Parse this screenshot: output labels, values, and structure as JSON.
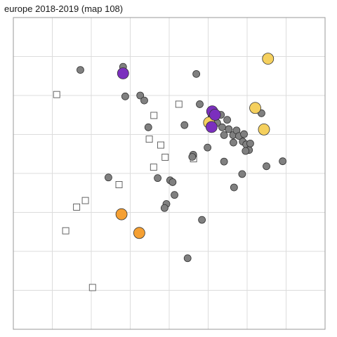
{
  "chart_data": {
    "type": "scatter",
    "title": "europe 2018-2019  (map 108)",
    "xlabel": "",
    "ylabel": "",
    "xlim": [
      0,
      100
    ],
    "ylim": [
      0,
      100
    ],
    "grid": true,
    "legend": "none",
    "colors": {
      "gray": "#808080",
      "purple": "#7b2fbe",
      "yellow": "#f5d05e",
      "orange": "#f5a033",
      "outline": "#333333",
      "hollow_stroke": "#555555",
      "grid": "#dcdcdc",
      "border": "#999999"
    },
    "series": [
      {
        "marker": "circle-gray",
        "points": [
          [
            21.5,
            83.2
          ],
          [
            35.2,
            84.2
          ],
          [
            58.7,
            81.9
          ],
          [
            35.9,
            74.7
          ],
          [
            40.7,
            75.0
          ],
          [
            42.0,
            73.4
          ],
          [
            59.8,
            72.2
          ],
          [
            54.9,
            65.5
          ],
          [
            43.3,
            64.8
          ],
          [
            63.6,
            68.3
          ],
          [
            66.6,
            68.8
          ],
          [
            65.4,
            66.2
          ],
          [
            68.6,
            67.2
          ],
          [
            69.1,
            64.2
          ],
          [
            67.0,
            64.8
          ],
          [
            67.6,
            62.3
          ],
          [
            70.5,
            62.3
          ],
          [
            71.6,
            63.8
          ],
          [
            70.6,
            59.9
          ],
          [
            72.4,
            62.0
          ],
          [
            74.0,
            62.6
          ],
          [
            73.6,
            60.2
          ],
          [
            74.7,
            59.3
          ],
          [
            75.6,
            57.5
          ],
          [
            76.0,
            59.6
          ],
          [
            74.5,
            57.2
          ],
          [
            79.6,
            69.3
          ],
          [
            62.3,
            58.3
          ],
          [
            57.7,
            56.0
          ],
          [
            57.4,
            55.3
          ],
          [
            67.6,
            53.8
          ],
          [
            73.4,
            49.8
          ],
          [
            81.2,
            52.3
          ],
          [
            86.4,
            53.9
          ],
          [
            30.5,
            48.7
          ],
          [
            46.3,
            48.5
          ],
          [
            50.3,
            47.8
          ],
          [
            51.1,
            47.2
          ],
          [
            70.8,
            45.5
          ],
          [
            51.7,
            43.1
          ],
          [
            49.1,
            40.2
          ],
          [
            48.5,
            38.9
          ],
          [
            60.5,
            35.1
          ],
          [
            55.9,
            22.8
          ]
        ]
      },
      {
        "marker": "circle-purple",
        "points": [
          [
            35.2,
            82.1
          ],
          [
            63.8,
            69.9
          ],
          [
            64.7,
            68.8
          ],
          [
            63.6,
            64.9
          ]
        ]
      },
      {
        "marker": "circle-yellow",
        "points": [
          [
            81.7,
            86.8
          ],
          [
            77.6,
            71.0
          ],
          [
            80.4,
            64.1
          ],
          [
            62.8,
            66.3
          ]
        ]
      },
      {
        "marker": "circle-orange",
        "points": [
          [
            34.7,
            36.9
          ],
          [
            40.4,
            30.9
          ]
        ]
      },
      {
        "marker": "square-hollow",
        "points": [
          [
            13.9,
            75.3
          ],
          [
            53.1,
            72.2
          ],
          [
            45.1,
            68.6
          ],
          [
            43.6,
            61.0
          ],
          [
            47.3,
            59.1
          ],
          [
            48.7,
            55.2
          ],
          [
            45.0,
            52.0
          ],
          [
            57.8,
            54.7
          ],
          [
            33.9,
            46.4
          ],
          [
            23.1,
            41.3
          ],
          [
            20.3,
            39.2
          ],
          [
            16.8,
            31.6
          ],
          [
            25.4,
            13.4
          ]
        ]
      }
    ]
  }
}
